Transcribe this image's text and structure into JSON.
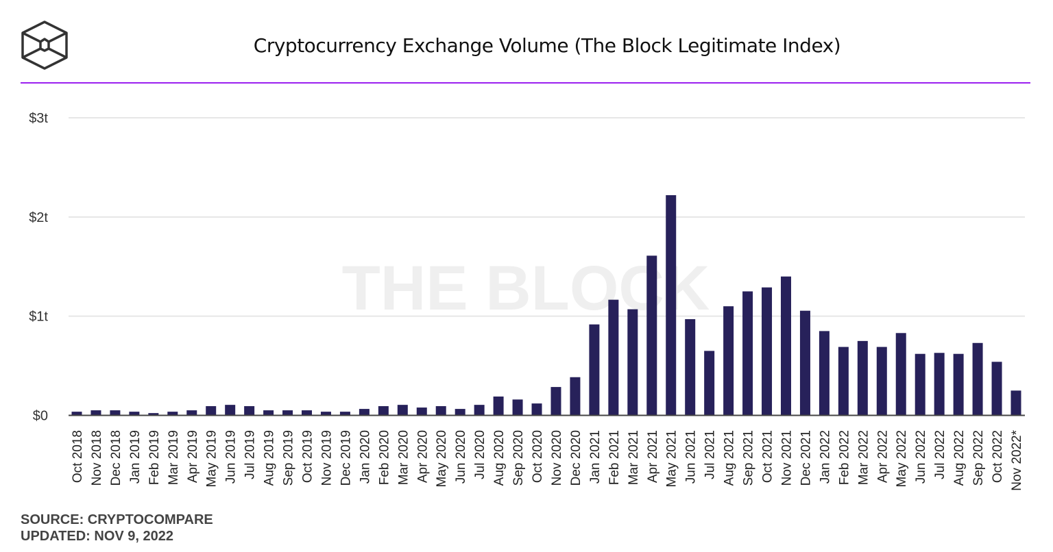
{
  "title": "Cryptocurrency Exchange Volume (The Block Legitimate Index)",
  "logo_icon": "the-block-cube-logo",
  "watermark": "THE BLOCK",
  "source": "SOURCE: CRYPTOCOMPARE",
  "updated": "UPDATED: NOV 9, 2022",
  "colors": {
    "bar": "#27215a",
    "accent": "#9b1ff0",
    "grid": "#e6e6e6"
  },
  "chart_data": {
    "type": "bar",
    "title": "Cryptocurrency Exchange Volume (The Block Legitimate Index)",
    "xlabel": "",
    "ylabel": "",
    "ylim": [
      0,
      3
    ],
    "yunit": "trillion USD",
    "yticks": [
      0,
      1,
      2,
      3
    ],
    "ytick_labels": [
      "$0",
      "$1t",
      "$2t",
      "$3t"
    ],
    "grid": true,
    "categories": [
      "Oct 2018",
      "Nov 2018",
      "Dec 2018",
      "Jan 2019",
      "Feb 2019",
      "Mar 2019",
      "Apr 2019",
      "May 2019",
      "Jun 2019",
      "Jul 2019",
      "Aug 2019",
      "Sep 2019",
      "Oct 2019",
      "Nov 2019",
      "Dec 2019",
      "Jan 2020",
      "Feb 2020",
      "Mar 2020",
      "Apr 2020",
      "May 2020",
      "Jun 2020",
      "Jul 2020",
      "Aug 2020",
      "Sep 2020",
      "Oct 2020",
      "Nov 2020",
      "Dec 2020",
      "Jan 2021",
      "Feb 2021",
      "Mar 2021",
      "Apr 2021",
      "May 2021",
      "Jun 2021",
      "Jul 2021",
      "Aug 2021",
      "Sep 2021",
      "Oct 2021",
      "Nov 2021",
      "Dec 2021",
      "Jan 2022",
      "Feb 2022",
      "Mar 2022",
      "Apr 2022",
      "May 2022",
      "Jun 2022",
      "Jul 2022",
      "Aug 2022",
      "Sep 2022",
      "Oct 2022",
      "Nov 2022*"
    ],
    "values": [
      0.037,
      0.051,
      0.051,
      0.037,
      0.023,
      0.037,
      0.051,
      0.093,
      0.106,
      0.093,
      0.051,
      0.051,
      0.051,
      0.037,
      0.037,
      0.065,
      0.093,
      0.106,
      0.079,
      0.093,
      0.065,
      0.106,
      0.19,
      0.16,
      0.12,
      0.286,
      0.385,
      0.917,
      1.166,
      1.07,
      1.61,
      2.22,
      0.97,
      0.65,
      1.1,
      1.25,
      1.29,
      1.4,
      1.055,
      0.85,
      0.69,
      0.75,
      0.69,
      0.83,
      0.62,
      0.63,
      0.62,
      0.73,
      0.54,
      0.25
    ]
  }
}
